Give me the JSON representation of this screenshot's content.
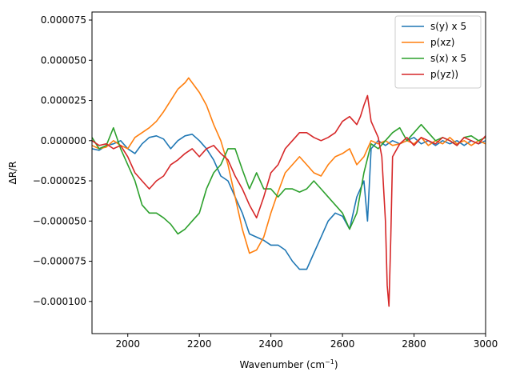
{
  "chart_data": {
    "type": "line",
    "title": "",
    "xlabel": "Wavenumber (cm",
    "xlabel_sup": "−1",
    "xlabel_end": ")",
    "ylabel": "ΔR/R",
    "xlim": [
      1900,
      3000
    ],
    "ylim": [
      -0.00012,
      8e-05
    ],
    "xticks": [
      2000,
      2200,
      2400,
      2600,
      2800,
      3000
    ],
    "xtick_labels": [
      "2000",
      "2200",
      "2400",
      "2600",
      "2800",
      "3000"
    ],
    "yticks": [
      -0.0001,
      -7.5e-05,
      -5e-05,
      -2.5e-05,
      0.0,
      2.5e-05,
      5e-05,
      7.5e-05
    ],
    "ytick_labels": [
      "−0.000100",
      "−0.000075",
      "−0.000050",
      "−0.000025",
      "0.000000",
      "0.000025",
      "0.000050",
      "0.000075"
    ],
    "grid": false,
    "legend_position": "top-right",
    "series": [
      {
        "name": "s(y) x 5",
        "color": "#1f77b4",
        "x": [
          1900,
          1920,
          1940,
          1960,
          1980,
          2000,
          2020,
          2040,
          2060,
          2080,
          2100,
          2120,
          2140,
          2160,
          2180,
          2200,
          2220,
          2240,
          2260,
          2280,
          2300,
          2320,
          2340,
          2360,
          2380,
          2400,
          2420,
          2440,
          2460,
          2480,
          2500,
          2520,
          2540,
          2560,
          2580,
          2600,
          2620,
          2640,
          2660,
          2670,
          2680,
          2700,
          2720,
          2740,
          2760,
          2780,
          2800,
          2820,
          2840,
          2860,
          2880,
          2900,
          2920,
          2940,
          2960,
          2980,
          3000
        ],
        "y": [
          -5e-06,
          -6e-06,
          -3e-06,
          -2e-06,
          0.0,
          -5e-06,
          -8e-06,
          -2e-06,
          2e-06,
          3e-06,
          1e-06,
          -5e-06,
          0.0,
          3e-06,
          4e-06,
          0.0,
          -5e-06,
          -1.2e-05,
          -2.2e-05,
          -2.5e-05,
          -3.5e-05,
          -4.5e-05,
          -5.8e-05,
          -6e-05,
          -6.2e-05,
          -6.5e-05,
          -6.5e-05,
          -6.8e-05,
          -7.5e-05,
          -8e-05,
          -8e-05,
          -7e-05,
          -6e-05,
          -5e-05,
          -4.5e-05,
          -4.7e-05,
          -5.5e-05,
          -3.5e-05,
          -2.5e-05,
          -5e-05,
          -5e-06,
          0.0,
          -3e-06,
          0.0,
          -2e-06,
          0.0,
          2e-06,
          -2e-06,
          0.0,
          -3e-06,
          0.0,
          -2e-06,
          0.0,
          -3e-06,
          0.0,
          -2e-06,
          0.0
        ]
      },
      {
        "name": "p(xz)",
        "color": "#ff7f0e",
        "x": [
          1900,
          1920,
          1940,
          1960,
          1980,
          2000,
          2020,
          2040,
          2060,
          2080,
          2100,
          2120,
          2140,
          2160,
          2170,
          2180,
          2200,
          2220,
          2240,
          2260,
          2280,
          2300,
          2320,
          2340,
          2360,
          2380,
          2400,
          2420,
          2440,
          2460,
          2480,
          2500,
          2520,
          2540,
          2560,
          2580,
          2600,
          2620,
          2640,
          2660,
          2680,
          2700,
          2720,
          2740,
          2760,
          2780,
          2800,
          2820,
          2840,
          2860,
          2880,
          2900,
          2920,
          2940,
          2960,
          2980,
          3000
        ],
        "y": [
          -3e-06,
          -5e-06,
          -4e-06,
          0.0,
          -3e-06,
          -5e-06,
          2e-06,
          5e-06,
          8e-06,
          1.2e-05,
          1.8e-05,
          2.5e-05,
          3.2e-05,
          3.6e-05,
          3.9e-05,
          3.6e-05,
          3e-05,
          2.2e-05,
          1e-05,
          0.0,
          -1.5e-05,
          -3.5e-05,
          -5.5e-05,
          -7e-05,
          -6.8e-05,
          -6e-05,
          -4.5e-05,
          -3.2e-05,
          -2e-05,
          -1.5e-05,
          -1e-05,
          -1.5e-05,
          -2e-05,
          -2.2e-05,
          -1.5e-05,
          -1e-05,
          -8e-06,
          -5e-06,
          -1.5e-05,
          -1e-05,
          0.0,
          -2e-06,
          0.0,
          -3e-06,
          -2e-06,
          0.0,
          -2e-06,
          2e-06,
          -3e-06,
          0.0,
          -2e-06,
          2e-06,
          -2e-06,
          0.0,
          -3e-06,
          0.0,
          -2e-06
        ]
      },
      {
        "name": "s(x) x 5",
        "color": "#2ca02c",
        "x": [
          1900,
          1920,
          1940,
          1960,
          1980,
          2000,
          2020,
          2040,
          2060,
          2080,
          2100,
          2120,
          2140,
          2160,
          2180,
          2200,
          2220,
          2240,
          2260,
          2280,
          2300,
          2320,
          2340,
          2360,
          2380,
          2400,
          2420,
          2440,
          2460,
          2480,
          2500,
          2520,
          2540,
          2560,
          2580,
          2600,
          2620,
          2640,
          2660,
          2680,
          2700,
          2720,
          2740,
          2760,
          2780,
          2800,
          2820,
          2840,
          2860,
          2880,
          2900,
          2920,
          2940,
          2960,
          2980,
          3000
        ],
        "y": [
          2e-06,
          -5e-06,
          -3e-06,
          8e-06,
          -5e-06,
          -1.5e-05,
          -2.5e-05,
          -4e-05,
          -4.5e-05,
          -4.5e-05,
          -4.8e-05,
          -5.2e-05,
          -5.8e-05,
          -5.5e-05,
          -5e-05,
          -4.5e-05,
          -3e-05,
          -2e-05,
          -1.5e-05,
          -5e-06,
          -5e-06,
          -1.8e-05,
          -3e-05,
          -2e-05,
          -3e-05,
          -3e-05,
          -3.5e-05,
          -3e-05,
          -3e-05,
          -3.2e-05,
          -3e-05,
          -2.5e-05,
          -3e-05,
          -3.5e-05,
          -4e-05,
          -4.5e-05,
          -5.5e-05,
          -4.5e-05,
          -2e-05,
          -2e-06,
          -5e-06,
          0.0,
          5e-06,
          8e-06,
          0.0,
          5e-06,
          1e-05,
          5e-06,
          0.0,
          2e-06,
          0.0,
          -3e-06,
          2e-06,
          3e-06,
          0.0,
          2e-06
        ]
      },
      {
        "name": "p(yz))",
        "color": "#d62728",
        "x": [
          1900,
          1920,
          1940,
          1960,
          1980,
          2000,
          2020,
          2040,
          2060,
          2080,
          2100,
          2120,
          2140,
          2160,
          2180,
          2200,
          2220,
          2240,
          2260,
          2280,
          2300,
          2320,
          2340,
          2360,
          2380,
          2400,
          2420,
          2440,
          2460,
          2480,
          2500,
          2520,
          2540,
          2560,
          2580,
          2600,
          2620,
          2640,
          2650,
          2660,
          2670,
          2680,
          2700,
          2710,
          2720,
          2725,
          2730,
          2735,
          2740,
          2760,
          2780,
          2800,
          2820,
          2840,
          2860,
          2880,
          2900,
          2920,
          2940,
          2960,
          2980,
          3000
        ],
        "y": [
          0.0,
          -3e-06,
          -2e-06,
          -5e-06,
          -3e-06,
          -1e-05,
          -2e-05,
          -2.5e-05,
          -3e-05,
          -2.5e-05,
          -2.2e-05,
          -1.5e-05,
          -1.2e-05,
          -8e-06,
          -5e-06,
          -1e-05,
          -5e-06,
          -3e-06,
          -8e-06,
          -1.2e-05,
          -2.2e-05,
          -3e-05,
          -4e-05,
          -4.8e-05,
          -3.5e-05,
          -2e-05,
          -1.5e-05,
          -5e-06,
          0.0,
          5e-06,
          5e-06,
          2e-06,
          0.0,
          2e-06,
          5e-06,
          1.2e-05,
          1.5e-05,
          1e-05,
          1.5e-05,
          2.2e-05,
          2.8e-05,
          1.2e-05,
          2e-06,
          -1e-05,
          -5e-05,
          -9e-05,
          -0.000103,
          -6e-05,
          -1e-05,
          -2e-06,
          2e-06,
          -3e-06,
          2e-06,
          0.0,
          -2e-06,
          2e-06,
          0.0,
          -3e-06,
          2e-06,
          0.0,
          -2e-06,
          3e-06
        ]
      }
    ]
  }
}
